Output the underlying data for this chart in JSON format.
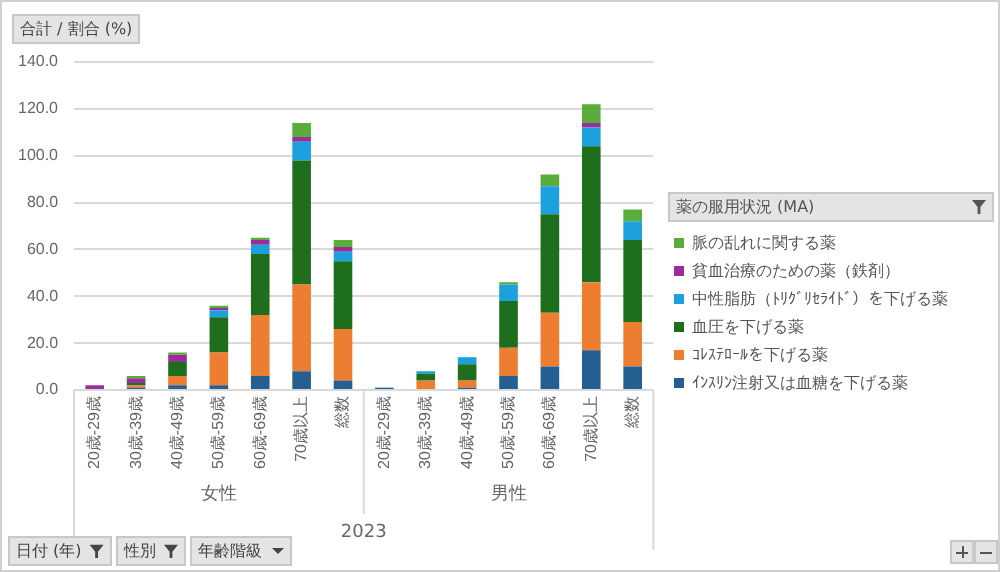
{
  "chart_data": {
    "type": "bar",
    "stacked": true,
    "ylabel": "合計 / 割合 (%)",
    "legend_title": "薬の服用状況 (MA)",
    "legend": "right",
    "grid": "y",
    "categories": [
      "20歳-29歳",
      "30歳-39歳",
      "40歳-49歳",
      "50歳-59歳",
      "60歳-69歳",
      "70歳以上",
      "総数",
      "20歳-29歳",
      "30歳-39歳",
      "40歳-49歳",
      "50歳-59歳",
      "60歳-69歳",
      "70歳以上",
      "総数"
    ],
    "ylim": [
      0,
      140
    ],
    "yticks": [
      {
        "value": 0,
        "label": "0.0"
      },
      {
        "value": 20,
        "label": "20.0"
      },
      {
        "value": 40,
        "label": "40.0"
      },
      {
        "value": 60,
        "label": "60.0"
      },
      {
        "value": 80,
        "label": "80.0"
      },
      {
        "value": 100,
        "label": "100.0"
      },
      {
        "value": 120,
        "label": "120.0"
      },
      {
        "value": 140,
        "label": "140.0"
      }
    ],
    "series": [
      {
        "name": "ｲﾝｽﾘﾝ注射又は血糖を下げる薬",
        "color": "#255e91",
        "values": [
          0,
          1,
          2,
          2,
          6,
          8,
          4,
          1,
          0,
          1,
          6,
          10,
          17,
          10
        ]
      },
      {
        "name": "ｺﾚｽﾃﾛｰﾙを下げる薬",
        "color": "#ed7d31",
        "values": [
          0,
          1,
          4,
          14,
          26,
          37,
          22,
          0,
          4,
          3,
          12,
          23,
          29,
          19
        ]
      },
      {
        "name": "血圧を下げる薬",
        "color": "#1e6e1e",
        "values": [
          0,
          1,
          6,
          15,
          26,
          53,
          29,
          0,
          3,
          7,
          20,
          42,
          58,
          35
        ]
      },
      {
        "name": "中性脂肪（ﾄﾘｸﾞﾘｾﾗｲﾄﾞ）を下げる薬",
        "color": "#1ca0de",
        "values": [
          0,
          0,
          0,
          3,
          4,
          8,
          4,
          0,
          1,
          3,
          7,
          12,
          8,
          8
        ]
      },
      {
        "name": "貧血治療のための薬（鉄剤）",
        "color": "#9b2d9b",
        "values": [
          2,
          2,
          3,
          1,
          2,
          2,
          2,
          0,
          0,
          0,
          0,
          0,
          2,
          0
        ]
      },
      {
        "name": "脈の乱れに関する薬",
        "color": "#5aad3a",
        "values": [
          0,
          1,
          1,
          1,
          1,
          6,
          3,
          0,
          0,
          0,
          1,
          5,
          8,
          5
        ]
      }
    ],
    "annotations": [
      "女性",
      "男性",
      "2023",
      "日付 (年)",
      "性別",
      "年齢階級"
    ]
  }
}
